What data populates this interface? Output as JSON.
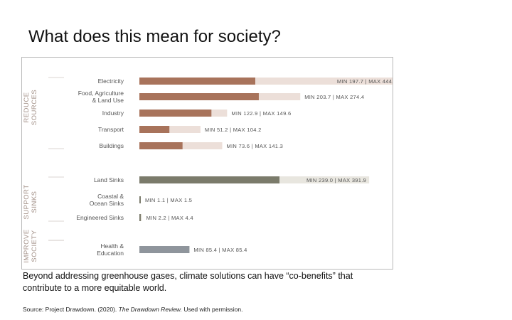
{
  "slide": {
    "title": "What does this mean for society?",
    "body": "Beyond addressing greenhouse gases, climate solutions can have “co-benefits” that contribute to a more equitable world.",
    "source_prefix": "Source: Project Drawdown. (2020). ",
    "source_title": "The Drawdown Review.",
    "source_suffix": " Used with permission."
  },
  "chart_data": {
    "type": "bar",
    "orientation": "horizontal",
    "unit": "gigatons",
    "xlim": [
      0,
      450
    ],
    "grid": false,
    "legend": "none",
    "groups": [
      {
        "label_lines": [
          "REDUCE",
          "SOURCES"
        ],
        "color": "#a8735b",
        "range_color": "#ecdfd9",
        "categories": [
          {
            "label_lines": [
              "Electricity"
            ],
            "min": 197.7,
            "max": 444.0,
            "range_label": "MIN 197.7 | MAX 444.0"
          },
          {
            "label_lines": [
              "Food, Agriculture",
              "& Land Use"
            ],
            "min": 203.7,
            "max": 274.4,
            "range_label": "MIN 203.7 | MAX 274.4"
          },
          {
            "label_lines": [
              "Industry"
            ],
            "min": 122.9,
            "max": 149.6,
            "range_label": "MIN 122.9 | MAX 149.6"
          },
          {
            "label_lines": [
              "Transport"
            ],
            "min": 51.2,
            "max": 104.2,
            "range_label": "MIN 51.2 | MAX 104.2"
          },
          {
            "label_lines": [
              "Buildings"
            ],
            "min": 73.6,
            "max": 141.3,
            "range_label": "MIN 73.6 | MAX 141.3"
          }
        ]
      },
      {
        "label_lines": [
          "SUPPORT",
          "SINKS"
        ],
        "color": "#7b7b6b",
        "range_color": "#e8e6df",
        "categories": [
          {
            "label_lines": [
              "Land Sinks"
            ],
            "min": 239.0,
            "max": 391.9,
            "range_label": "MIN 239.0 | MAX 391.9"
          },
          {
            "label_lines": [
              "Coastal &",
              "Ocean Sinks"
            ],
            "min": 1.1,
            "max": 1.5,
            "range_label": "MIN 1.1 | MAX 1.5"
          },
          {
            "label_lines": [
              "Engineered Sinks"
            ],
            "min": 2.2,
            "max": 4.4,
            "range_label": "MIN 2.2 | MAX 4.4"
          }
        ]
      },
      {
        "label_lines": [
          "IMPROVE",
          "SOCIETY"
        ],
        "color": "#8f959c",
        "range_color": "#e3e5e8",
        "categories": [
          {
            "label_lines": [
              "Health &",
              "Education"
            ],
            "min": 85.4,
            "max": 85.4,
            "range_label": "MIN 85.4 | MAX 85.4"
          }
        ]
      }
    ]
  }
}
